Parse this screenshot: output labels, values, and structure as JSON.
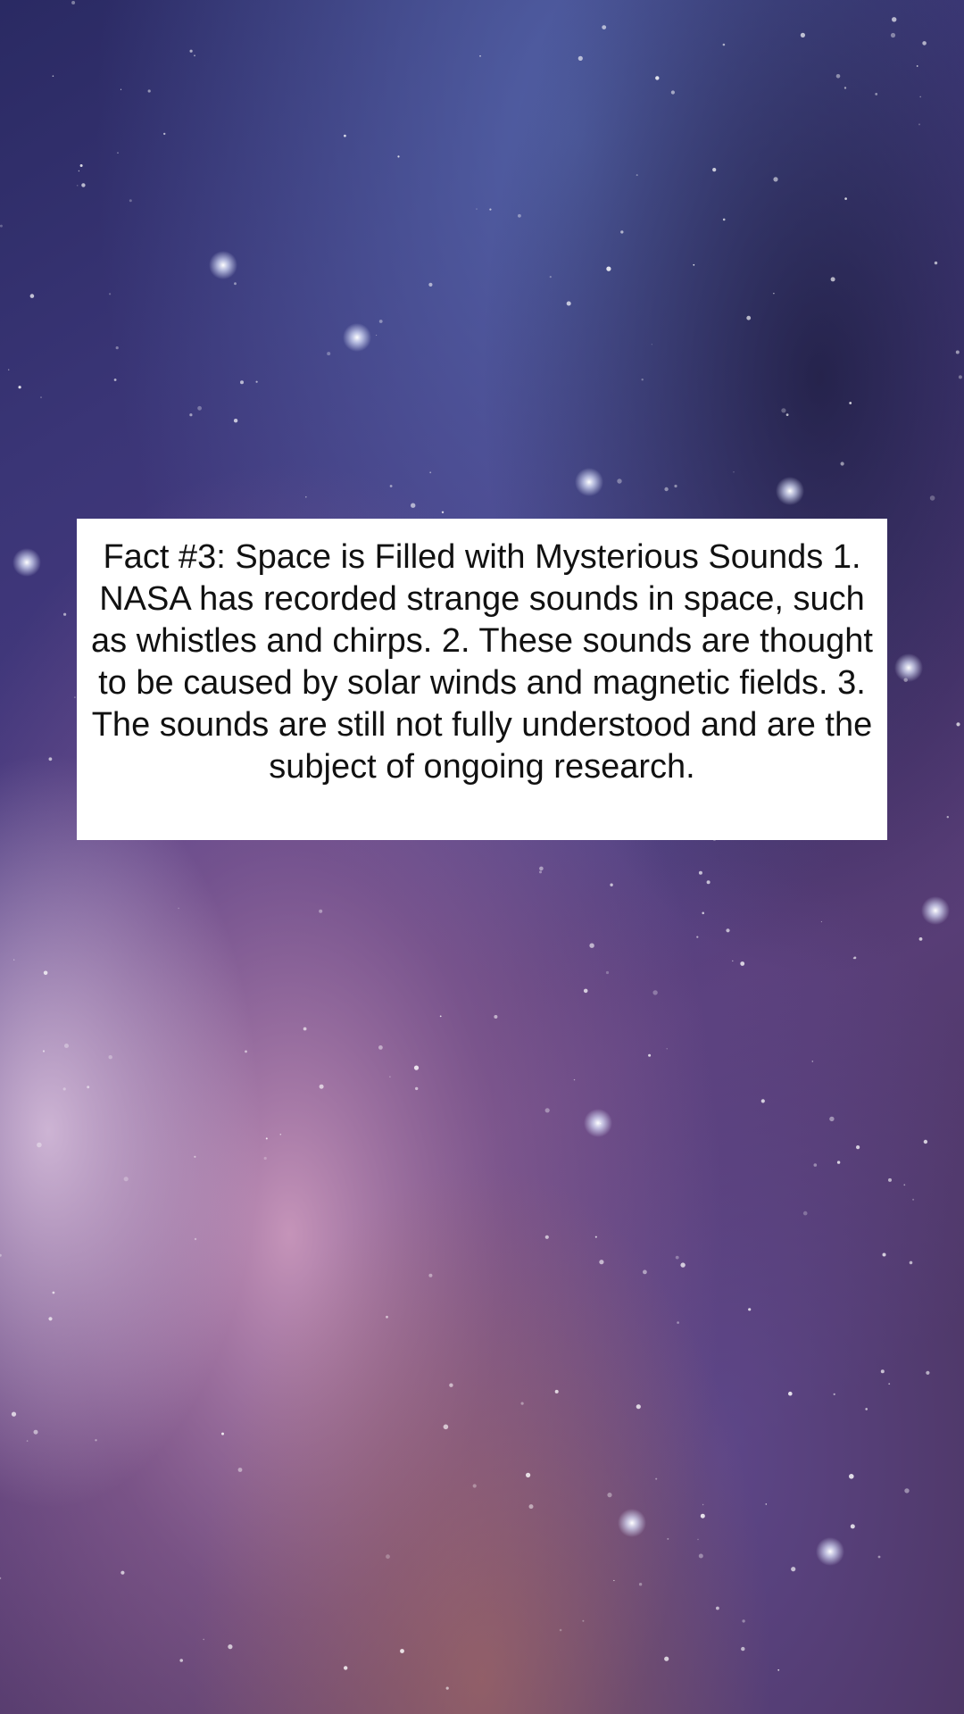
{
  "background": {
    "icon": "galaxy-starfield-image",
    "colors": {
      "deep": "#1f1b45",
      "blue": "#3b4a8c",
      "violet": "#6a4f9b",
      "pink": "#b07aa8",
      "haze": "#d9b3cc"
    }
  },
  "fact": {
    "text": "Fact #3: Space is Filled with Mysterious Sounds 1. NASA has recorded strange sounds in space, such as whistles and chirps. 2. These sounds are thought to be caused by solar winds and magnetic fields. 3. The sounds are still not fully understood and are the subject of ongoing research."
  }
}
